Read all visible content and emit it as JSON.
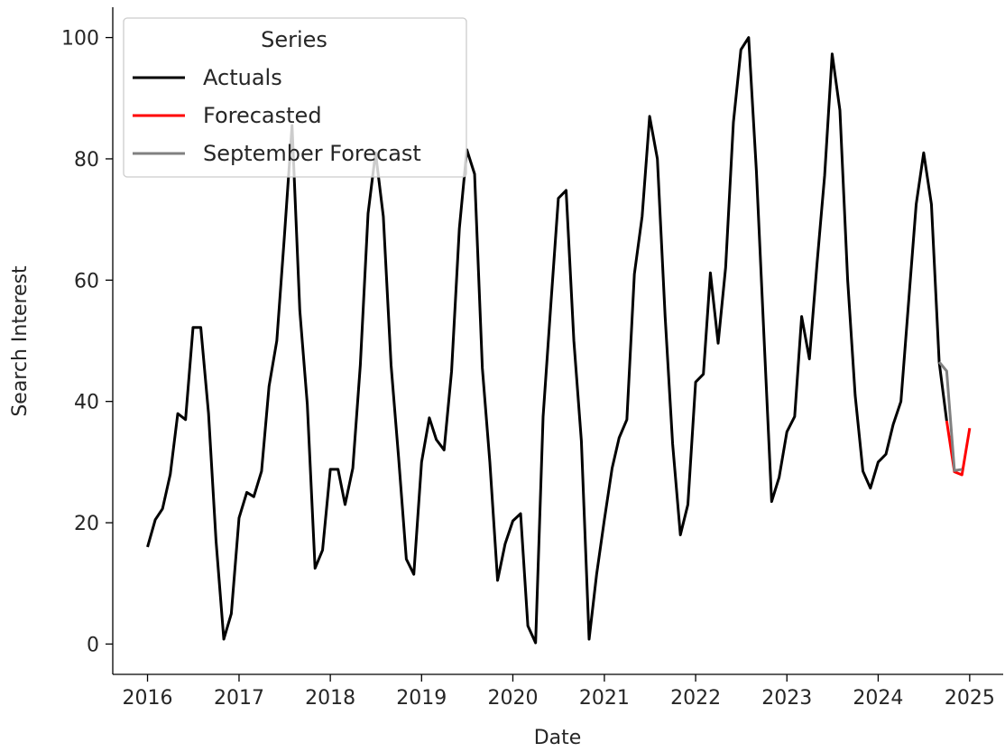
{
  "chart_data": {
    "type": "line",
    "title": "",
    "xlabel": "Date",
    "ylabel": "Search Interest",
    "xlim": [
      "2015-08-15",
      "2025-05-15"
    ],
    "ylim": [
      -5,
      105
    ],
    "x_ticks": [
      "2016",
      "2017",
      "2018",
      "2019",
      "2020",
      "2021",
      "2022",
      "2023",
      "2024",
      "2025"
    ],
    "y_ticks": [
      0,
      20,
      40,
      60,
      80,
      100
    ],
    "grid": false,
    "legend": {
      "title": "Series",
      "placement": "top-left"
    },
    "series": [
      {
        "name": "Actuals",
        "color": "#000000",
        "x": [
          "2016-01-01",
          "2016-02-01",
          "2016-03-01",
          "2016-04-01",
          "2016-05-01",
          "2016-06-01",
          "2016-07-01",
          "2016-08-01",
          "2016-09-01",
          "2016-10-01",
          "2016-11-01",
          "2016-12-01",
          "2017-01-01",
          "2017-02-01",
          "2017-03-01",
          "2017-04-01",
          "2017-05-01",
          "2017-06-01",
          "2017-07-01",
          "2017-08-01",
          "2017-09-01",
          "2017-10-01",
          "2017-11-01",
          "2017-12-01",
          "2018-01-01",
          "2018-02-01",
          "2018-03-01",
          "2018-04-01",
          "2018-05-01",
          "2018-06-01",
          "2018-07-01",
          "2018-08-01",
          "2018-09-01",
          "2018-10-01",
          "2018-11-01",
          "2018-12-01",
          "2019-01-01",
          "2019-02-01",
          "2019-03-01",
          "2019-04-01",
          "2019-05-01",
          "2019-06-01",
          "2019-07-01",
          "2019-08-01",
          "2019-09-01",
          "2019-10-01",
          "2019-11-01",
          "2019-12-01",
          "2020-01-01",
          "2020-02-01",
          "2020-03-01",
          "2020-04-01",
          "2020-05-01",
          "2020-06-01",
          "2020-07-01",
          "2020-08-01",
          "2020-09-01",
          "2020-10-01",
          "2020-11-01",
          "2020-12-01",
          "2021-01-01",
          "2021-02-01",
          "2021-03-01",
          "2021-04-01",
          "2021-05-01",
          "2021-06-01",
          "2021-07-01",
          "2021-08-01",
          "2021-09-01",
          "2021-10-01",
          "2021-11-01",
          "2021-12-01",
          "2022-01-01",
          "2022-02-01",
          "2022-03-01",
          "2022-04-01",
          "2022-05-01",
          "2022-06-01",
          "2022-07-01",
          "2022-08-01",
          "2022-09-01",
          "2022-10-01",
          "2022-11-01",
          "2022-12-01",
          "2023-01-01",
          "2023-02-01",
          "2023-03-01",
          "2023-04-01",
          "2023-05-01",
          "2023-06-01",
          "2023-07-01",
          "2023-08-01",
          "2023-09-01",
          "2023-10-01",
          "2023-11-01",
          "2023-12-01",
          "2024-01-01",
          "2024-02-01",
          "2024-03-01",
          "2024-04-01",
          "2024-05-01",
          "2024-06-01",
          "2024-07-01",
          "2024-08-01",
          "2024-09-01",
          "2024-10-01"
        ],
        "values": [
          16,
          20.5,
          22.3,
          28,
          38,
          37,
          52.2,
          52.2,
          38,
          17,
          0.8,
          5,
          20.8,
          25,
          24.3,
          28.5,
          42.5,
          50,
          67,
          85.5,
          55,
          39.5,
          12.5,
          15.5,
          28.8,
          28.8,
          23,
          29,
          46,
          71,
          81,
          70.5,
          46,
          30.8,
          14,
          11.5,
          30,
          37.3,
          33.7,
          32,
          45,
          68.5,
          81.5,
          77.5,
          45.5,
          30,
          10.5,
          16.5,
          20.3,
          21.5,
          3,
          0.2,
          37.5,
          56,
          73.5,
          74.8,
          50,
          33.5,
          0.8,
          11.5,
          20.5,
          29,
          34,
          37,
          61,
          70.5,
          87,
          80,
          54,
          33,
          18,
          23,
          43.2,
          44.5,
          61.2,
          49.6,
          62.1,
          86,
          98,
          100,
          78,
          51,
          23.5,
          27.5,
          35,
          37.5,
          54,
          47,
          62.5,
          77.3,
          97.3,
          88,
          60,
          41,
          28.5,
          25.7,
          30,
          31.3,
          36.2,
          40,
          56,
          72.5,
          81,
          72.5,
          46.5,
          36.8
        ]
      },
      {
        "name": "Forecasted",
        "color": "#ff0000",
        "x": [
          "2024-10-01",
          "2024-11-01",
          "2024-12-01",
          "2025-01-01"
        ],
        "values": [
          36.8,
          28.4,
          27.9,
          35.6
        ]
      },
      {
        "name": "September Forecast",
        "color": "#808080",
        "x": [
          "2024-09-01",
          "2024-10-01",
          "2024-11-01",
          "2024-12-01"
        ],
        "values": [
          46.5,
          45,
          28.6,
          28.8
        ]
      }
    ]
  }
}
